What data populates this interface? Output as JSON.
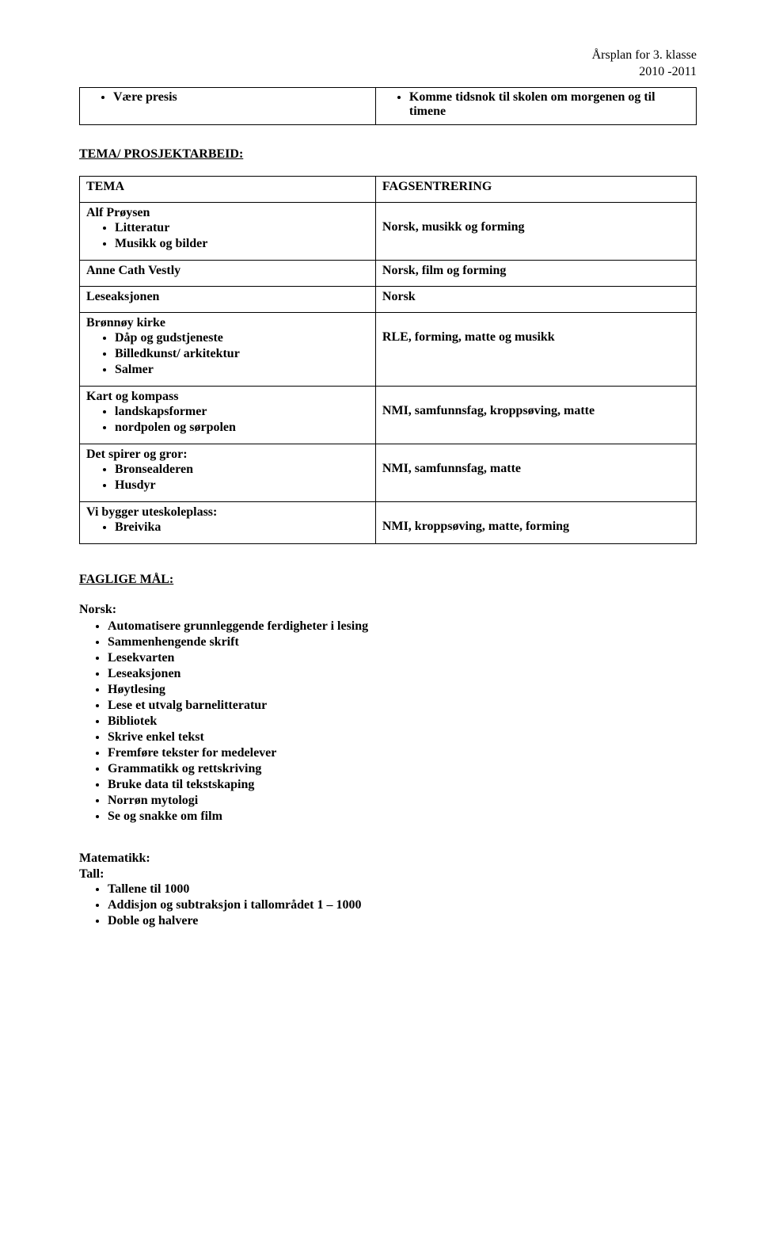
{
  "header": {
    "line1": "Årsplan for 3. klasse",
    "line2": "2010 -2011"
  },
  "topBox": {
    "leftItem": "Være presis",
    "rightItems": [
      "Komme tidsnok til skolen om morgenen og til timene"
    ]
  },
  "sectionTitle": "TEMA/ PROSJEKTARBEID:",
  "table": {
    "headLeft": "TEMA",
    "headRight": "FAGSENTRERING",
    "rows": [
      {
        "leftHeading": "Alf Prøysen",
        "leftBullets": [
          "Litteratur",
          "Musikk og bilder"
        ],
        "right": "Norsk, musikk og forming"
      },
      {
        "leftHeading": "Anne Cath Vestly",
        "leftBullets": [],
        "right": "Norsk, film og forming"
      },
      {
        "leftHeading": "Leseaksjonen",
        "leftBullets": [],
        "right": "Norsk"
      },
      {
        "leftHeading": "Brønnøy kirke",
        "leftBullets": [
          "Dåp og gudstjeneste",
          "Billedkunst/ arkitektur",
          "Salmer"
        ],
        "right": "RLE, forming, matte og musikk"
      },
      {
        "leftHeading": "Kart og kompass",
        "leftBullets": [
          "landskapsformer",
          "nordpolen og sørpolen"
        ],
        "right": "NMI, samfunnsfag, kroppsøving, matte"
      },
      {
        "leftHeading": "Det spirer og gror:",
        "leftBullets": [
          "Bronsealderen",
          "Husdyr"
        ],
        "right": "NMI, samfunnsfag, matte"
      },
      {
        "leftHeading": "Vi bygger uteskoleplass:",
        "leftBullets": [
          "Breivika"
        ],
        "right": "NMI, kroppsøving, matte, forming"
      }
    ]
  },
  "fagligeTitle": "FAGLIGE MÅL:",
  "norskLabel": "Norsk:",
  "norskItems": [
    "Automatisere grunnleggende ferdigheter i lesing",
    "Sammenhengende skrift",
    "Lesekvarten",
    "Leseaksjonen",
    "Høytlesing",
    "Lese et utvalg barnelitteratur",
    "Bibliotek",
    "Skrive enkel tekst",
    "Fremføre tekster for medelever",
    "Grammatikk og rettskriving",
    "Bruke data til tekstskaping",
    "Norrøn mytologi",
    "Se og snakke om film"
  ],
  "matteLabel": "Matematikk:",
  "matteSubLabel": "Tall:",
  "matteItems": [
    "Tallene til 1000",
    "Addisjon og subtraksjon i tallområdet 1 – 1000",
    "Doble og halvere"
  ]
}
